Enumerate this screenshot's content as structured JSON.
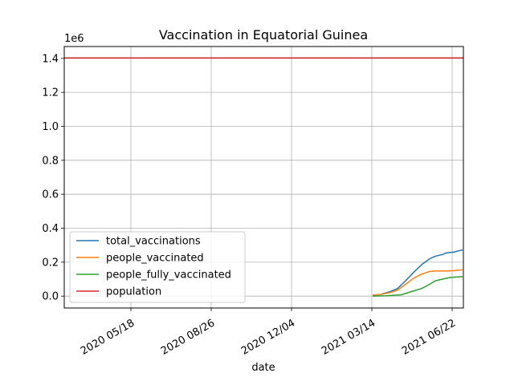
{
  "chart_data": {
    "type": "line",
    "title": "Vaccination in Equatorial Guinea",
    "xlabel": "date",
    "ylabel": "",
    "y_offset_label": "1e6",
    "xlim": [
      "2020-02-25",
      "2021-07-06"
    ],
    "ylim": [
      -70000,
      1470000
    ],
    "y_ticks": [
      0,
      200000,
      400000,
      600000,
      800000,
      1000000,
      1200000,
      1400000
    ],
    "y_tick_labels": [
      "0.0",
      "0.2",
      "0.4",
      "0.6",
      "0.8",
      "1.0",
      "1.2",
      "1.4"
    ],
    "x_ticks": [
      "2020-05-18",
      "2020-08-26",
      "2020-12-04",
      "2021-03-14",
      "2021-06-22"
    ],
    "x_tick_labels": [
      "2020 05/18",
      "2020 08/26",
      "2020 12/04",
      "2021 03/14",
      "2021 06/22"
    ],
    "grid": true,
    "legend_position": "lower-left",
    "series": [
      {
        "name": "total_vaccinations",
        "color": "#1f77b4",
        "points": [
          [
            "2021-03-15",
            5000
          ],
          [
            "2021-03-25",
            10000
          ],
          [
            "2021-04-05",
            25000
          ],
          [
            "2021-04-15",
            45000
          ],
          [
            "2021-04-25",
            90000
          ],
          [
            "2021-05-05",
            140000
          ],
          [
            "2021-05-15",
            185000
          ],
          [
            "2021-05-25",
            220000
          ],
          [
            "2021-06-01",
            235000
          ],
          [
            "2021-06-10",
            245000
          ],
          [
            "2021-06-15",
            255000
          ],
          [
            "2021-06-25",
            260000
          ],
          [
            "2021-07-01",
            268000
          ],
          [
            "2021-07-05",
            272000
          ]
        ]
      },
      {
        "name": "people_vaccinated",
        "color": "#ff7f0e",
        "points": [
          [
            "2021-03-15",
            5000
          ],
          [
            "2021-03-25",
            10000
          ],
          [
            "2021-04-05",
            20000
          ],
          [
            "2021-04-15",
            35000
          ],
          [
            "2021-04-25",
            70000
          ],
          [
            "2021-05-05",
            105000
          ],
          [
            "2021-05-15",
            130000
          ],
          [
            "2021-05-25",
            145000
          ],
          [
            "2021-06-01",
            148000
          ],
          [
            "2021-06-15",
            148000
          ],
          [
            "2021-06-25",
            150000
          ],
          [
            "2021-07-05",
            155000
          ]
        ]
      },
      {
        "name": "people_fully_vaccinated",
        "color": "#2ca02c",
        "points": [
          [
            "2021-03-15",
            0
          ],
          [
            "2021-04-01",
            2000
          ],
          [
            "2021-04-20",
            8000
          ],
          [
            "2021-05-01",
            25000
          ],
          [
            "2021-05-15",
            45000
          ],
          [
            "2021-05-25",
            70000
          ],
          [
            "2021-06-01",
            90000
          ],
          [
            "2021-06-10",
            100000
          ],
          [
            "2021-06-20",
            110000
          ],
          [
            "2021-07-05",
            115000
          ]
        ]
      },
      {
        "name": "population",
        "color": "#d62728",
        "points": [
          [
            "2020-02-25",
            1402985
          ],
          [
            "2021-07-06",
            1402985
          ]
        ]
      }
    ]
  }
}
